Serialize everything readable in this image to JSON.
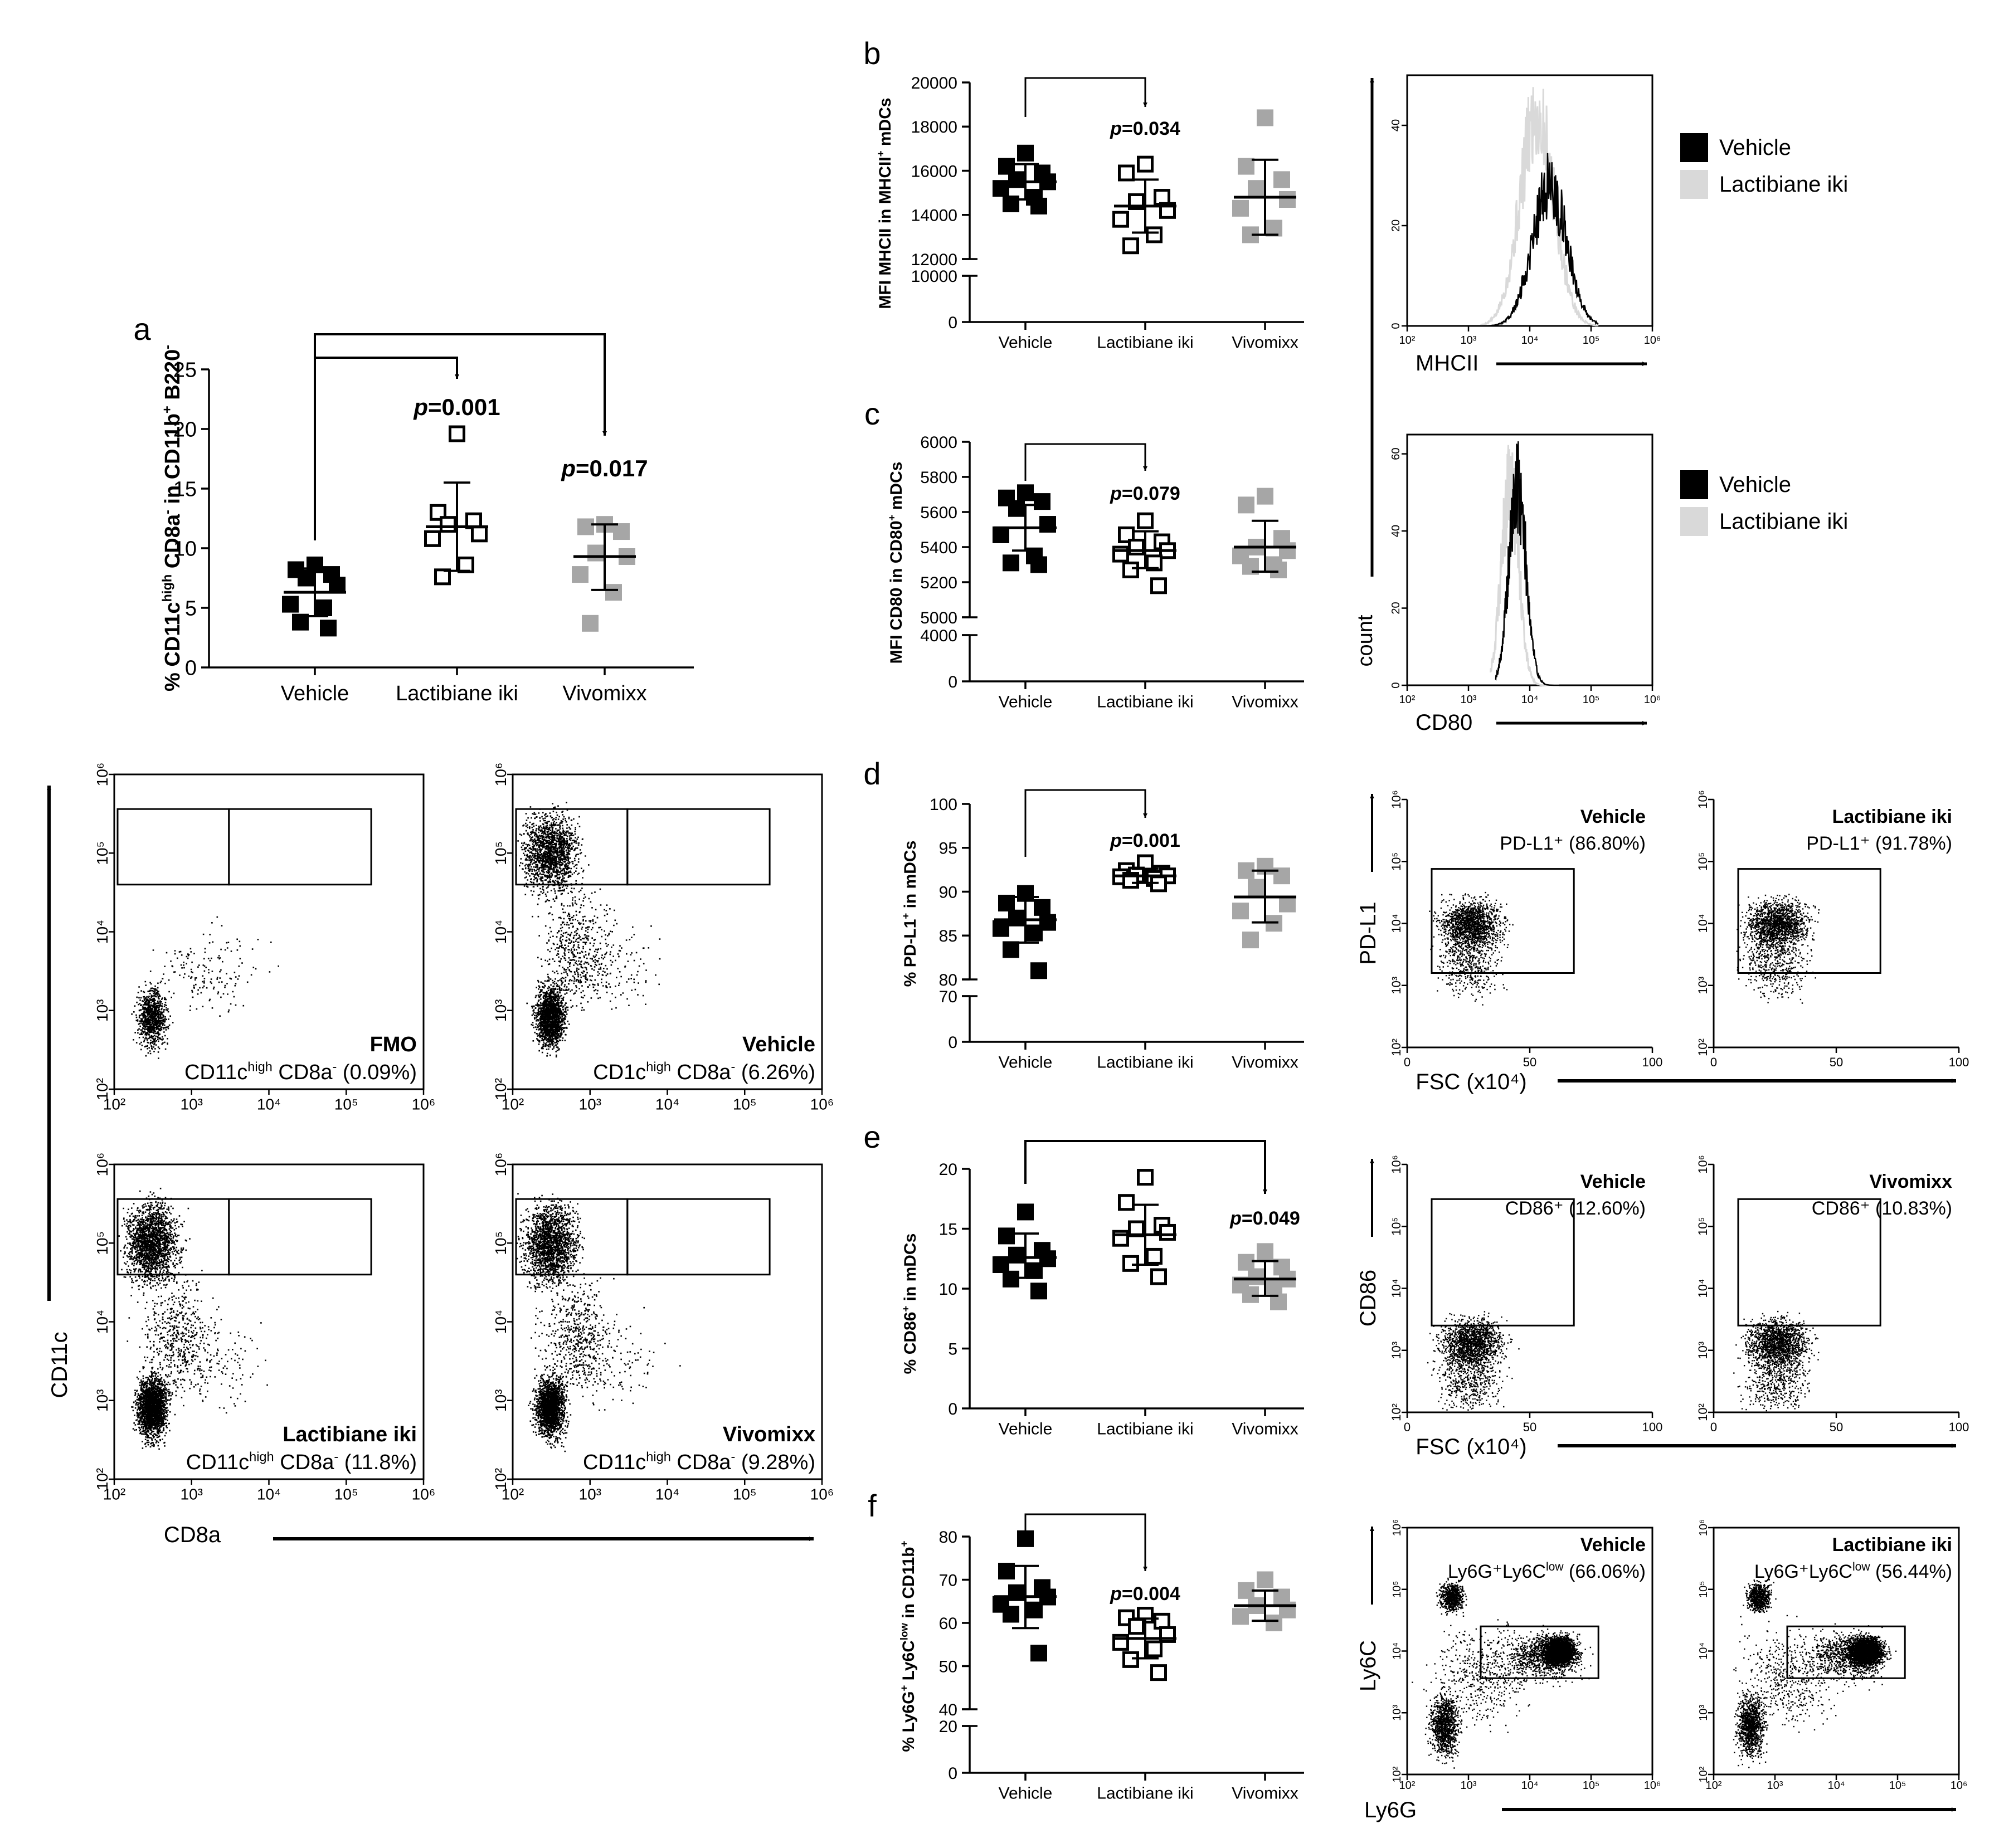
{
  "groups": [
    "Vehicle",
    "Lactibiane iki",
    "Vivomixx"
  ],
  "group_colors": {
    "vehicle": "#000000",
    "lactibiane": "#ffffff",
    "vivomixx": "#a6a6a6"
  },
  "histogram_colors": {
    "vehicle": "#000000",
    "lactibiane": "#d9d9d9"
  },
  "chart_data": [
    {
      "id": "a",
      "type": "scatter",
      "panel_label": "a",
      "ylabel": "% CD11c^high CD8a^- in CD11b^+ B220^-",
      "ylim": [
        0,
        25
      ],
      "yticks": [
        "0",
        "5",
        "10",
        "15",
        "20",
        "25"
      ],
      "categories": [
        "Vehicle",
        "Lactibiane iki",
        "Vivomixx"
      ],
      "series": [
        {
          "name": "Vehicle",
          "values": [
            8.6,
            8.2,
            7.8,
            7.5,
            6.9,
            5.3,
            5.0,
            3.8,
            3.3
          ],
          "mean": 6.3,
          "sd_low": 4.3,
          "sd_high": 8.3
        },
        {
          "name": "Lactibiane iki",
          "values": [
            19.6,
            13.0,
            12.3,
            12.0,
            11.2,
            10.8,
            8.6,
            7.6
          ],
          "mean": 11.8,
          "sd_low": 8.1,
          "sd_high": 15.5
        },
        {
          "name": "Vivomixx",
          "values": [
            12.0,
            11.8,
            11.4,
            9.6,
            9.3,
            7.8,
            6.3,
            3.7
          ],
          "mean": 9.3,
          "sd_low": 6.5,
          "sd_high": 12.0
        }
      ],
      "comparisons": [
        {
          "to": 1,
          "p": "0.001"
        },
        {
          "to": 2,
          "p": "0.017"
        }
      ]
    },
    {
      "id": "b",
      "type": "scatter",
      "panel_label": "b",
      "ylabel": "MFI MHCII in MHCII^+ mDCs",
      "ylim": [
        0,
        20000
      ],
      "yticks_upper": [
        "12000",
        "14000",
        "16000",
        "18000",
        "20000"
      ],
      "yticks_lower": [
        "0",
        "10000"
      ],
      "categories": [
        "Vehicle",
        "Lactibiane iki",
        "Vivomixx"
      ],
      "series": [
        {
          "name": "Vehicle",
          "values": [
            16800,
            16200,
            15900,
            15600,
            15500,
            15200,
            14800,
            14500,
            14400
          ],
          "mean": 15500,
          "sd_low": 14700,
          "sd_high": 16300
        },
        {
          "name": "Lactibiane iki",
          "values": [
            16300,
            15900,
            14800,
            14600,
            14200,
            13800,
            13100,
            12600
          ],
          "mean": 14400,
          "sd_low": 13200,
          "sd_high": 15600
        },
        {
          "name": "Vivomixx",
          "values": [
            18400,
            16200,
            15600,
            15200,
            14700,
            14300,
            13400,
            13100
          ],
          "mean": 14800,
          "sd_low": 13100,
          "sd_high": 16500
        }
      ],
      "comparisons": [
        {
          "to": 1,
          "p": "0.034"
        }
      ]
    },
    {
      "id": "c",
      "type": "scatter",
      "panel_label": "c",
      "ylabel": "MFI CD80 in CD80^+ mDCs",
      "ylim": [
        0,
        6000
      ],
      "yticks_upper": [
        "5000",
        "5200",
        "5400",
        "5600",
        "5800",
        "6000"
      ],
      "yticks_lower": [
        "0",
        "4000"
      ],
      "categories": [
        "Vehicle",
        "Lactibiane iki",
        "Vivomixx"
      ],
      "series": [
        {
          "name": "Vehicle",
          "values": [
            5710,
            5680,
            5660,
            5620,
            5530,
            5470,
            5350,
            5310,
            5300
          ],
          "mean": 5510,
          "sd_low": 5380,
          "sd_high": 5640
        },
        {
          "name": "Lactibiane iki",
          "values": [
            5550,
            5470,
            5430,
            5400,
            5380,
            5360,
            5310,
            5270,
            5180
          ],
          "mean": 5380,
          "sd_low": 5280,
          "sd_high": 5490
        },
        {
          "name": "Vivomixx",
          "values": [
            5690,
            5640,
            5450,
            5400,
            5380,
            5350,
            5300,
            5290,
            5270
          ],
          "mean": 5400,
          "sd_low": 5260,
          "sd_high": 5550
        }
      ],
      "comparisons": [
        {
          "to": 1,
          "p": "0.079"
        }
      ]
    },
    {
      "id": "d",
      "type": "scatter",
      "panel_label": "d",
      "ylabel": "% PD-L1^+ in mDCs",
      "ylim": [
        0,
        100
      ],
      "yticks_upper": [
        "80",
        "85",
        "90",
        "95",
        "100"
      ],
      "yticks_lower": [
        "0",
        "70"
      ],
      "categories": [
        "Vehicle",
        "Lactibiane iki",
        "Vivomixx"
      ],
      "series": [
        {
          "name": "Vehicle",
          "values": [
            89.8,
            88.7,
            88.2,
            87.0,
            86.5,
            85.8,
            85.3,
            83.4,
            81.0
          ],
          "mean": 86.8,
          "sd_low": 84.2,
          "sd_high": 89.4
        },
        {
          "name": "Lactibiane iki",
          "values": [
            93.3,
            92.4,
            92.1,
            91.9,
            91.8,
            91.7,
            91.5,
            91.3,
            90.9
          ],
          "mean": 91.8,
          "sd_low": 91.0,
          "sd_high": 92.6
        },
        {
          "name": "Vivomixx",
          "values": [
            92.9,
            92.4,
            91.8,
            90.5,
            88.6,
            87.8,
            86.4,
            84.5
          ],
          "mean": 89.4,
          "sd_low": 86.5,
          "sd_high": 92.4
        }
      ],
      "comparisons": [
        {
          "to": 1,
          "p": "0.001"
        }
      ]
    },
    {
      "id": "e",
      "type": "scatter",
      "panel_label": "e",
      "ylabel": "% CD86^+ in mDCs",
      "ylim": [
        0,
        20
      ],
      "yticks": [
        "0",
        "5",
        "10",
        "15",
        "20"
      ],
      "categories": [
        "Vehicle",
        "Lactibiane iki",
        "Vivomixx"
      ],
      "series": [
        {
          "name": "Vehicle",
          "values": [
            16.4,
            14.4,
            13.2,
            12.8,
            12.5,
            12.0,
            11.5,
            10.8,
            9.8
          ],
          "mean": 12.6,
          "sd_low": 10.9,
          "sd_high": 14.6
        },
        {
          "name": "Lactibiane iki",
          "values": [
            19.3,
            17.2,
            15.3,
            15.0,
            14.7,
            14.2,
            12.7,
            12.1,
            11.0
          ],
          "mean": 14.5,
          "sd_low": 12.0,
          "sd_high": 17.0
        },
        {
          "name": "Vivomixx",
          "values": [
            13.1,
            12.2,
            11.8,
            11.0,
            10.8,
            10.3,
            10.2,
            9.5,
            8.9
          ],
          "mean": 10.8,
          "sd_low": 9.4,
          "sd_high": 12.3
        }
      ],
      "comparisons": [
        {
          "to": 2,
          "p": "0.049"
        }
      ]
    },
    {
      "id": "f",
      "type": "scatter",
      "panel_label": "f",
      "ylabel": "% Ly6G^+ Ly6C^low in CD11b^+",
      "ylim": [
        0,
        80
      ],
      "yticks_upper": [
        "40",
        "50",
        "60",
        "70",
        "80"
      ],
      "yticks_lower": [
        "0",
        "20"
      ],
      "categories": [
        "Vehicle",
        "Lactibiane iki",
        "Vivomixx"
      ],
      "series": [
        {
          "name": "Vehicle",
          "values": [
            79.5,
            72.0,
            68.2,
            67.0,
            66.0,
            64.3,
            63.0,
            62.0,
            53.0
          ],
          "mean": 66.1,
          "sd_low": 58.8,
          "sd_high": 73.2
        },
        {
          "name": "Lactibiane iki",
          "values": [
            61.8,
            61.2,
            60.4,
            59.2,
            57.3,
            55.5,
            54.0,
            51.5,
            48.5
          ],
          "mean": 56.4,
          "sd_low": 51.8,
          "sd_high": 61.0
        },
        {
          "name": "Vivomixx",
          "values": [
            70.0,
            67.5,
            66.0,
            64.0,
            63.0,
            61.5,
            60.0
          ],
          "mean": 64.0,
          "sd_low": 60.5,
          "sd_high": 67.5
        }
      ],
      "comparisons": [
        {
          "to": 1,
          "p": "0.004"
        }
      ]
    }
  ],
  "flow_a": {
    "x_axis_label": "CD8a",
    "y_axis_label": "CD11c",
    "log_ticks": [
      "10²",
      "10³",
      "10⁴",
      "10⁵",
      "10⁶"
    ],
    "panels": [
      {
        "title": "FMO",
        "gate_text": "CD11c^high CD8a^- (0.09%)",
        "percent": 0.09
      },
      {
        "title": "Vehicle",
        "gate_text": "CD1c^high CD8a^- (6.26%)",
        "percent": 6.26
      },
      {
        "title": "Lactibiane iki",
        "gate_text": "CD11c^high CD8a^- (11.8%)",
        "percent": 11.8
      },
      {
        "title": "Vivomixx",
        "gate_text": "CD11c^high CD8a^- (9.28%)",
        "percent": 9.28
      }
    ]
  },
  "histograms": {
    "legend": [
      "Vehicle",
      "Lactibiane iki"
    ],
    "count_label": "count",
    "log_ticks": [
      "10²",
      "10³",
      "10⁴",
      "10⁵",
      "10⁶"
    ],
    "mhcii": {
      "x_label": "MHCII",
      "y_ticks": [
        "0",
        "20",
        "40"
      ]
    },
    "cd80": {
      "x_label": "CD80",
      "y_ticks": [
        "0",
        "20",
        "40",
        "60"
      ]
    }
  },
  "flow_pdl1": {
    "y_label": "PD-L1",
    "x_label": "FSC (x10⁴)",
    "x_ticks": [
      "0",
      "50",
      "100"
    ],
    "log_ticks": [
      "10²",
      "10³",
      "10⁴",
      "10⁵",
      "10⁶"
    ],
    "panels": [
      {
        "title": "Vehicle",
        "gate_text": "PD-L1⁺ (86.80%)",
        "percent": 86.8
      },
      {
        "title": "Lactibiane iki",
        "gate_text": "PD-L1⁺ (91.78%)",
        "percent": 91.78
      }
    ]
  },
  "flow_cd86": {
    "y_label": "CD86",
    "x_label": "FSC (x10⁴)",
    "x_ticks": [
      "0",
      "50",
      "100"
    ],
    "log_ticks": [
      "10²",
      "10³",
      "10⁴",
      "10⁵",
      "10⁶"
    ],
    "panels": [
      {
        "title": "Vehicle",
        "gate_text": "CD86⁺ (12.60%)",
        "percent": 12.6
      },
      {
        "title": "Vivomixx",
        "gate_text": "CD86⁺ (10.83%)",
        "percent": 10.83
      }
    ]
  },
  "flow_ly6": {
    "y_label": "Ly6C",
    "x_label": "Ly6G",
    "log_ticks": [
      "10²",
      "10³",
      "10⁴",
      "10⁵",
      "10⁶"
    ],
    "panels": [
      {
        "title": "Vehicle",
        "gate_text": "Ly6G⁺Ly6C^low (66.06%)",
        "percent": 66.06
      },
      {
        "title": "Lactibiane iki",
        "gate_text": "Ly6G⁺Ly6C^low (56.44%)",
        "percent": 56.44
      }
    ]
  }
}
